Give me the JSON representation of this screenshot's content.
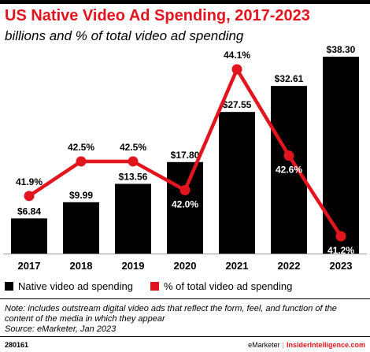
{
  "chart_data": {
    "type": "bar",
    "title": "US Native Video Ad Spending, 2017-2023",
    "subtitle": "billions and % of total video ad spending",
    "categories": [
      "2017",
      "2018",
      "2019",
      "2020",
      "2021",
      "2022",
      "2023"
    ],
    "series": [
      {
        "name": "Native video ad spending",
        "type": "bar",
        "values": [
          6.84,
          9.99,
          13.56,
          17.8,
          27.55,
          32.61,
          38.3
        ],
        "labels": [
          "$6.84",
          "$9.99",
          "$13.56",
          "$17.80",
          "$27.55",
          "$32.61",
          "$38.30"
        ],
        "color": "#000000"
      },
      {
        "name": "% of total video ad spending",
        "type": "line",
        "values": [
          41.9,
          42.5,
          42.5,
          42.0,
          44.1,
          42.6,
          41.2
        ],
        "labels": [
          "41.9%",
          "42.5%",
          "42.5%",
          "42.0%",
          "44.1%",
          "42.6%",
          "41.2%"
        ],
        "color": "#e2141d"
      }
    ],
    "legend": "bottom-left",
    "grid": false
  },
  "note": "Note: includes outstream digital video ads that reflect the form, feel, and function of the content of the media in which they appear",
  "source": "Source: eMarketer, Jan 2023",
  "footer": {
    "chart_id": "280161",
    "brand_left": "eMarketer",
    "separator": "|",
    "brand_right": "InsiderIntelligence.com"
  }
}
